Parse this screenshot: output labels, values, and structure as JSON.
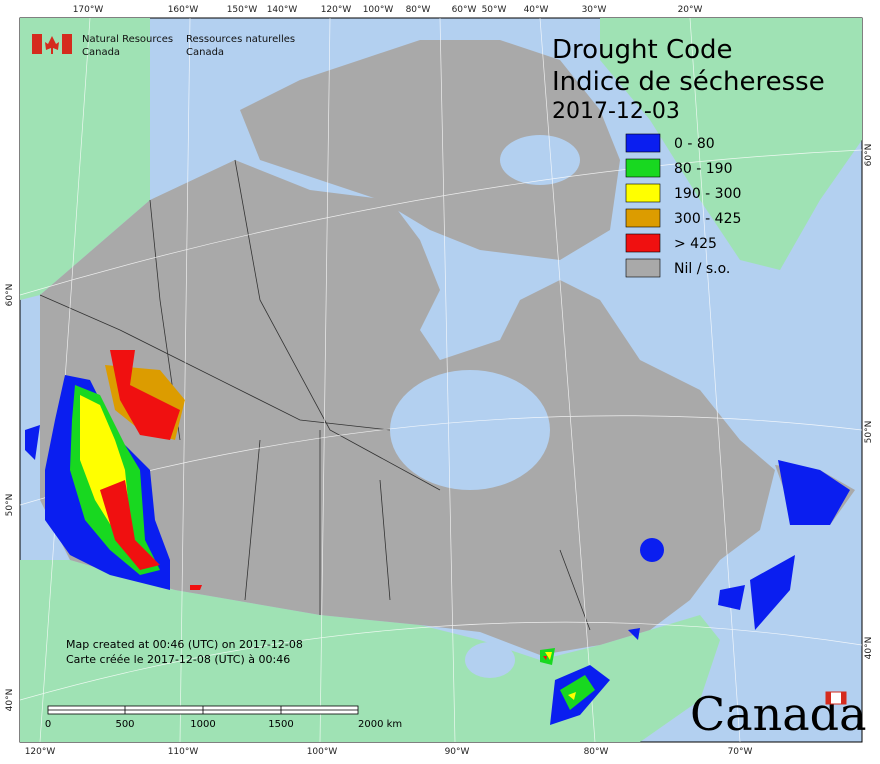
{
  "agency": {
    "english": [
      "Natural Resources",
      "Canada"
    ],
    "french": [
      "Ressources naturelles",
      "Canada"
    ]
  },
  "title": {
    "english": "Drought Code",
    "french": "Indice de sécheresse",
    "date": "2017-12-03"
  },
  "legend": {
    "items": [
      {
        "label": "0 - 80",
        "color": "#0a1ef0"
      },
      {
        "label": "80 - 190",
        "color": "#18d820"
      },
      {
        "label": "190 - 300",
        "color": "#ffff00"
      },
      {
        "label": "300 - 425",
        "color": "#dc9c00"
      },
      {
        "label": "> 425",
        "color": "#f01010"
      },
      {
        "label": "Nil / s.o.",
        "color": "#a9a9a9"
      }
    ]
  },
  "notes": [
    "Map created at 00:46 (UTC) on 2017-12-08",
    "Carte créée le 2017-12-08 (UTC) à 00:46"
  ],
  "scale_bar": [
    "0",
    "500",
    "1000",
    "1500",
    "2000 km"
  ],
  "wordmark": "Canada",
  "graticule": {
    "top": [
      "170°W",
      "160°W",
      "150°W",
      "140°W",
      "120°W",
      "100°W",
      "80°W",
      "60°W",
      "50°W",
      "40°W",
      "30°W",
      "20°W"
    ],
    "bottom": [
      "120°W",
      "110°W",
      "100°W",
      "90°W",
      "80°W",
      "70°W"
    ],
    "left": [
      "60°N",
      "50°N",
      "40°N"
    ],
    "right": [
      "60°N",
      "50°N",
      "40°N"
    ]
  }
}
